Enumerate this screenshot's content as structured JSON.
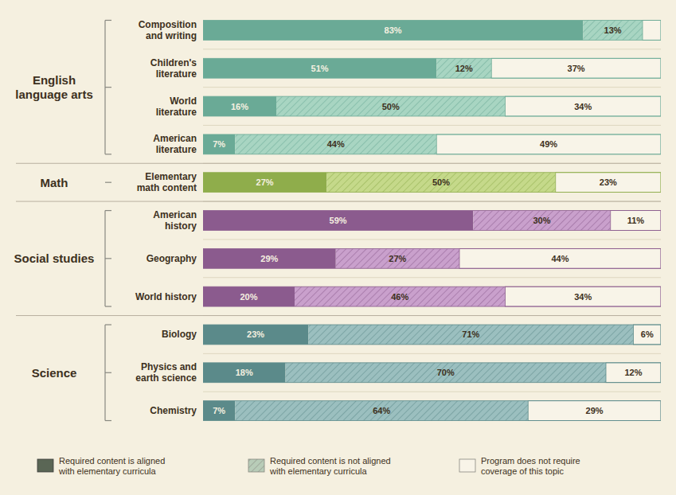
{
  "chart_data": {
    "type": "bar",
    "orientation": "horizontal",
    "stacked": true,
    "categories": [
      "Composition\nand writing",
      "Children's\nliterature",
      "World\nliterature",
      "American\nliterature",
      "Elementary\nmath content",
      "American\nhistory",
      "Geography",
      "World history",
      "Biology",
      "Physics and\nearth science",
      "Chemistry"
    ],
    "groups": [
      {
        "label": "English\nlanguage arts",
        "span": [
          0,
          3
        ]
      },
      {
        "label": "Math",
        "span": [
          4,
          4
        ]
      },
      {
        "label": "Social studies",
        "span": [
          5,
          7
        ]
      },
      {
        "label": "Science",
        "span": [
          8,
          10
        ]
      }
    ],
    "series": [
      {
        "name": "Required content is aligned\nwith elementary curricula",
        "color": "#5a6655",
        "colors": [
          "#6aaa96",
          "#6aaa96",
          "#6aaa96",
          "#6aaa96",
          "#8fad4b",
          "#8b5b8e",
          "#8b5b8e",
          "#8b5b8e",
          "#5b8a8a",
          "#5b8a8a",
          "#5b8a8a"
        ],
        "values": [
          83,
          51,
          16,
          7,
          27,
          59,
          29,
          20,
          23,
          18,
          7
        ],
        "value_labels": [
          "83%",
          "51%",
          "16%",
          "7%",
          "27%",
          "59%",
          "29%",
          "20%",
          "23%",
          "18%",
          "7%"
        ]
      },
      {
        "name": "Required content is not aligned\nwith elementary curricula",
        "color": "#b8ccb8",
        "colors": [
          "#a8d5c2",
          "#a8d5c2",
          "#a8d5c2",
          "#a8d5c2",
          "#c5d98a",
          "#c9a0cc",
          "#c9a0cc",
          "#c9a0cc",
          "#9bbfbf",
          "#9bbfbf",
          "#9bbfbf"
        ],
        "values": [
          13,
          12,
          50,
          44,
          50,
          30,
          27,
          46,
          71,
          70,
          64
        ],
        "value_labels": [
          "13%",
          "12%",
          "50%",
          "44%",
          "50%",
          "30%",
          "27%",
          "46%",
          "71%",
          "70%",
          "64%"
        ]
      },
      {
        "name": "Program does not require\ncoverage of this topic",
        "color": "#f8f4e8",
        "values": [
          4,
          37,
          34,
          49,
          23,
          11,
          44,
          34,
          6,
          12,
          29
        ],
        "value_labels": [
          null,
          "37%",
          "34%",
          "49%",
          "23%",
          "11%",
          "44%",
          "34%",
          "6%",
          "12%",
          "29%"
        ]
      }
    ],
    "xlim": [
      0,
      100
    ],
    "tick_labels": "y",
    "data_labels": true,
    "grid": false,
    "legend": "bottom"
  }
}
